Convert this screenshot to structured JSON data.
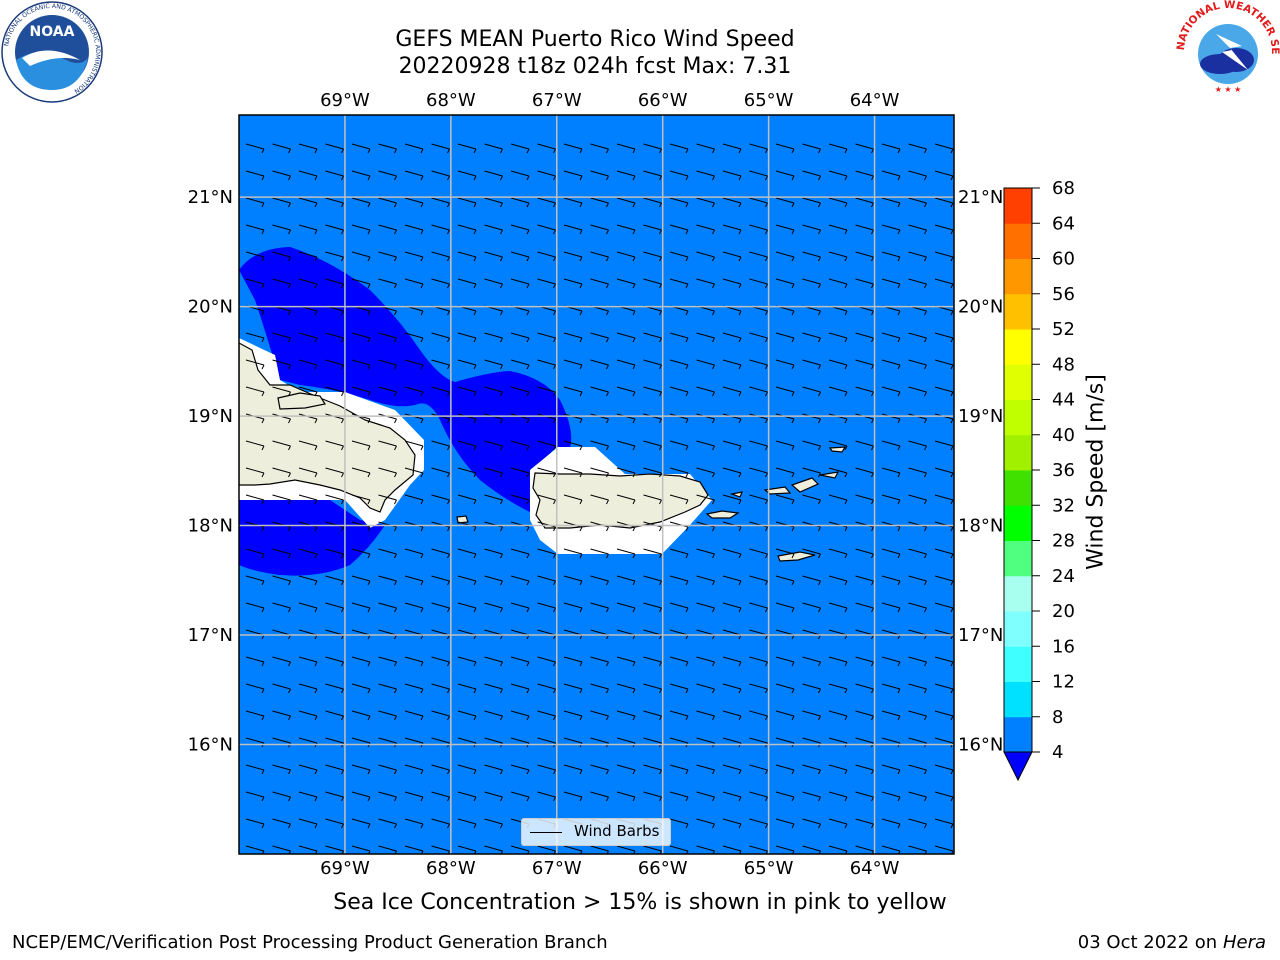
{
  "header": {
    "title_line1": "GEFS MEAN Puerto Rico Wind Speed",
    "title_line2": "20220928 t18z 024h fcst   Max: 7.31"
  },
  "logos": {
    "noaa_text": "NOAA",
    "noaa_ring_text": "NATIONAL OCEANIC AND ATMOSPHERIC ADMINISTRATION",
    "noaa_bottom_text": "U.S. DEPARTMENT OF COMMERCE",
    "nws_ring_text": "NATIONAL WEATHER SERVICE"
  },
  "map": {
    "lon_labels": [
      "69°W",
      "68°W",
      "67°W",
      "66°W",
      "65°W",
      "64°W"
    ],
    "lat_labels": [
      "21°N",
      "20°N",
      "19°N",
      "18°N",
      "17°N",
      "16°N"
    ],
    "lon_values": [
      -69,
      -68,
      -67,
      -66,
      -65,
      -64
    ],
    "lat_values": [
      21,
      20,
      19,
      18,
      17,
      16
    ],
    "extent": {
      "lon": [
        -70.0,
        -63.25
      ],
      "lat": [
        15.0,
        21.75
      ]
    },
    "colors": {
      "ocean_fill": "#0080ff",
      "low_wind_fill": "#0000ff",
      "land": "#eeeedd",
      "masked": "#ffffff",
      "barb": "#000000",
      "grid": "#c0c0c0"
    }
  },
  "legend": {
    "label": "Wind Barbs"
  },
  "colorbar": {
    "title": "Wind Speed [m/s]",
    "ticks": [
      "68",
      "64",
      "60",
      "56",
      "52",
      "48",
      "44",
      "40",
      "36",
      "32",
      "28",
      "24",
      "20",
      "16",
      "12",
      "8",
      "4"
    ],
    "levels": [
      4,
      8,
      12,
      16,
      20,
      24,
      28,
      32,
      36,
      40,
      44,
      48,
      52,
      56,
      60,
      64,
      68
    ],
    "colors": [
      "#0080ff",
      "#00e0ff",
      "#40ffff",
      "#80ffff",
      "#a8fff0",
      "#50ff80",
      "#00ff00",
      "#40e000",
      "#a0f000",
      "#c0ff00",
      "#e0ff00",
      "#ffff00",
      "#ffc000",
      "#ff9800",
      "#ff7000",
      "#ff4000",
      "#ff0000"
    ],
    "under_color": "#0000ff"
  },
  "chart_data": {
    "type": "heatmap",
    "title": "GEFS MEAN Puerto Rico Wind Speed",
    "subtitle": "20220928 t18z 024h fcst   Max: 7.31",
    "variable": "Wind Speed [m/s]",
    "max_value": 7.31,
    "color_levels": [
      4,
      8,
      12,
      16,
      20,
      24,
      28,
      32,
      36,
      40,
      44,
      48,
      52,
      56,
      60,
      64,
      68
    ],
    "xlim": [
      -70.0,
      -63.25
    ],
    "ylim": [
      15.0,
      21.75
    ]
  },
  "footer": {
    "sea_ice_note": "Sea Ice Concentration > 15% is shown in pink to yellow",
    "left": "NCEP/EMC/Verification Post Processing Product Generation Branch",
    "right_date": "03 Oct 2022 on ",
    "right_machine": "Hera"
  }
}
